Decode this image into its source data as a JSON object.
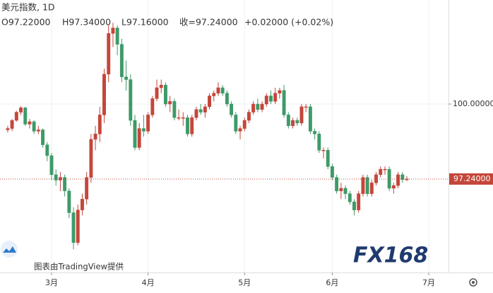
{
  "chart_data": {
    "type": "candlestick",
    "title": "美元指数, 1D",
    "ohlc_header": [
      "O97.22000",
      "H97.34000",
      "L97.16000",
      "收=97.24000",
      "+0.02000 (+0.02%)"
    ],
    "watermark": "图表由TradingView提供",
    "logo": "FX168",
    "up_color": "#c4463a",
    "down_color": "#3e9a68",
    "ylim": [
      93.8,
      103.83
    ],
    "yticks": [
      {
        "value": 100,
        "label": "100.00000"
      }
    ],
    "xlim": [
      -1.755,
      100.5
    ],
    "xticks": [
      {
        "value": 10,
        "label": "3月"
      },
      {
        "value": 32,
        "label": "4月"
      },
      {
        "value": 54,
        "label": "5月"
      },
      {
        "value": 74,
        "label": "6月"
      },
      {
        "value": 96,
        "label": "7月"
      }
    ],
    "grid": true,
    "last_price": {
      "value": 97.24,
      "label": "97.24000"
    },
    "open": [
      99.05,
      99.1,
      99.4,
      99.7,
      99.86,
      99.26,
      99.35,
      99.0,
      99.05,
      98.5,
      98.1,
      97.4,
      97.2,
      97.3,
      96.8,
      96.0,
      94.9,
      96.1,
      96.5,
      97.3,
      98.7,
      98.9,
      99.6,
      101.1,
      102.6,
      102.8,
      102.2,
      101.0,
      100.9,
      99.4,
      98.4,
      99.1,
      99.0,
      99.6,
      100.2,
      100.6,
      100.7,
      100.0,
      100.1,
      99.5,
      99.5,
      99.5,
      98.9,
      99.5,
      99.8,
      99.7,
      99.9,
      100.3,
      100.4,
      100.6,
      100.4,
      100.0,
      99.6,
      99.0,
      99.1,
      99.4,
      99.7,
      100.0,
      99.8,
      100.0,
      100.3,
      100.1,
      100.4,
      100.5,
      99.6,
      99.2,
      99.4,
      99.3,
      99.9,
      99.9,
      99.0,
      98.9,
      98.3,
      98.3,
      97.7,
      97.3,
      96.8,
      96.9,
      96.7,
      96.4,
      96.1,
      96.7,
      97.3,
      96.7,
      97.1,
      97.4,
      97.6,
      97.6,
      96.9,
      97.0,
      97.4,
      97.22
    ],
    "high": [
      99.2,
      99.45,
      99.75,
      99.92,
      99.9,
      99.45,
      99.4,
      99.2,
      99.1,
      98.6,
      98.2,
      97.6,
      97.5,
      97.4,
      96.9,
      96.2,
      96.3,
      96.7,
      97.5,
      98.9,
      99.2,
      99.9,
      101.3,
      102.9,
      102.99,
      102.9,
      102.4,
      101.6,
      101.1,
      99.6,
      99.3,
      99.6,
      99.7,
      100.3,
      100.9,
      100.9,
      100.8,
      100.3,
      100.2,
      99.8,
      99.7,
      99.6,
      99.6,
      99.9,
      100.0,
      100.0,
      100.4,
      100.5,
      100.8,
      100.7,
      100.5,
      100.1,
      99.7,
      99.2,
      99.5,
      99.8,
      100.1,
      100.2,
      100.1,
      100.4,
      100.5,
      100.6,
      100.6,
      100.7,
      99.7,
      99.5,
      99.5,
      100.0,
      100.0,
      100.0,
      99.1,
      99.0,
      98.4,
      98.4,
      97.8,
      97.4,
      97.1,
      97.0,
      96.8,
      96.5,
      96.8,
      97.4,
      97.4,
      97.2,
      97.5,
      97.7,
      97.7,
      97.7,
      97.1,
      97.5,
      97.5,
      97.34
    ],
    "low": [
      98.95,
      99.0,
      99.35,
      99.6,
      99.2,
      99.1,
      98.9,
      98.9,
      98.4,
      97.9,
      97.2,
      97.0,
      96.8,
      96.6,
      95.8,
      94.65,
      94.8,
      95.9,
      96.3,
      97.1,
      98.3,
      98.6,
      99.3,
      100.8,
      102.1,
      101.8,
      100.8,
      100.5,
      99.2,
      98.3,
      98.3,
      98.8,
      98.9,
      99.5,
      100.1,
      100.4,
      99.9,
      99.7,
      99.4,
      99.4,
      99.2,
      98.8,
      98.8,
      99.4,
      99.6,
      99.5,
      99.8,
      100.1,
      100.3,
      100.3,
      99.9,
      99.5,
      98.9,
      98.7,
      99.0,
      99.3,
      99.6,
      99.7,
      99.7,
      99.9,
      100.0,
      100.0,
      100.2,
      99.5,
      99.1,
      99.1,
      99.2,
      99.2,
      99.7,
      98.9,
      98.7,
      98.2,
      98.0,
      97.6,
      97.2,
      96.7,
      96.5,
      96.5,
      96.3,
      95.9,
      96.0,
      96.6,
      96.6,
      96.6,
      97.0,
      97.3,
      97.4,
      96.8,
      96.7,
      96.9,
      97.1,
      97.16
    ],
    "close": [
      99.1,
      99.4,
      99.7,
      99.86,
      99.26,
      99.35,
      99.0,
      99.05,
      98.5,
      98.1,
      97.4,
      97.2,
      97.3,
      96.8,
      96.0,
      94.9,
      96.1,
      96.5,
      97.3,
      98.7,
      98.9,
      99.6,
      101.1,
      102.6,
      102.8,
      102.2,
      101.0,
      100.9,
      99.4,
      98.4,
      99.1,
      99.0,
      99.6,
      100.2,
      100.6,
      100.7,
      100.0,
      100.1,
      99.5,
      99.5,
      99.5,
      98.9,
      99.5,
      99.8,
      99.7,
      99.9,
      100.3,
      100.4,
      100.6,
      100.4,
      100.0,
      99.6,
      99.0,
      99.1,
      99.4,
      99.7,
      100.0,
      99.8,
      100.0,
      100.3,
      100.1,
      100.4,
      100.5,
      99.6,
      99.2,
      99.4,
      99.3,
      99.9,
      99.9,
      99.0,
      98.9,
      98.3,
      98.3,
      97.7,
      97.3,
      96.8,
      96.9,
      96.7,
      96.4,
      96.1,
      96.7,
      97.3,
      96.7,
      97.1,
      97.4,
      97.6,
      97.6,
      96.9,
      97.0,
      97.4,
      97.22,
      97.24
    ]
  }
}
